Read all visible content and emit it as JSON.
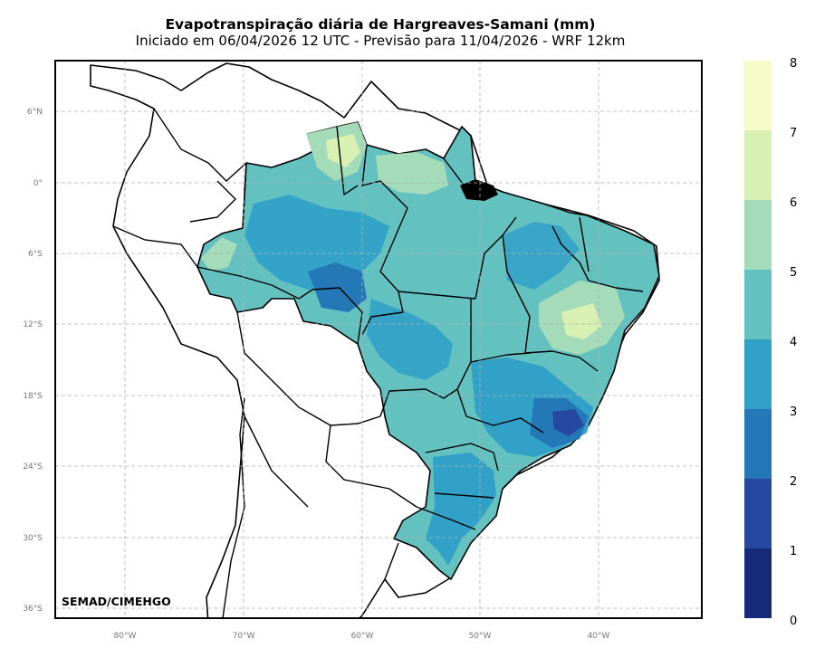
{
  "title": "Evapotranspiração diária de Hargreaves-Samani (mm)",
  "subtitle": "Iniciado em 06/04/2026 12 UTC - Previsão para 11/04/2026 - WRF 12km",
  "credit": "SEMAD/CIMEHGO",
  "axes": {
    "lat_labels": [
      "6°N",
      "0°",
      "6°S",
      "12°S",
      "18°S",
      "24°S",
      "30°S",
      "36°S"
    ],
    "lon_labels": [
      "80°W",
      "70°W",
      "60°W",
      "50°W",
      "40°W"
    ]
  },
  "colorbar": {
    "labels": [
      "0",
      "1",
      "2",
      "3",
      "4",
      "5",
      "6",
      "7",
      "8"
    ],
    "colors": [
      "#172a7a",
      "#2648a1",
      "#2478b6",
      "#31a1c8",
      "#63c1c0",
      "#a4dbb8",
      "#d8f1b2",
      "#f6fbc9"
    ]
  },
  "palette": {
    "land": "#ffffff",
    "border": "#000000",
    "grid": "#b0b0b0"
  }
}
